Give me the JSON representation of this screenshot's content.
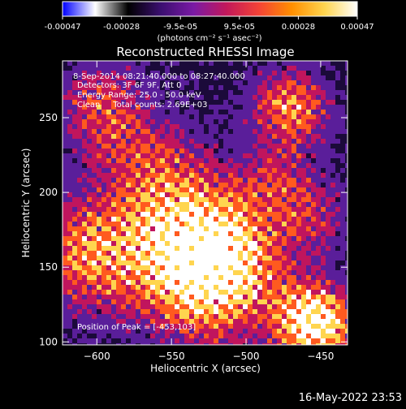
{
  "colorbar": {
    "tick_labels": [
      "-0.00047",
      "-0.00028",
      "-9.5e-05",
      "9.5e-05",
      "0.00028",
      "0.00047"
    ],
    "unit_label": "(photons cm⁻² s⁻¹ asec⁻²)",
    "colors": [
      "#0000ff",
      "#ffffff",
      "#000000",
      "#3b0f70",
      "#7a1aa5",
      "#c2185b",
      "#f44336",
      "#ff8f00",
      "#ffd54f",
      "#ffffff"
    ]
  },
  "image": {
    "title": "Reconstructed RHESSI Image",
    "annotation_lines": [
      "8-Sep-2014 08:21:40.000 to 08:27:40.000",
      "Detectors: 3F 6F 9F, Att 0",
      "Energy Range: 25.0 - 50.0 keV",
      "Clean     Total counts: 2.69E+03"
    ],
    "peak_label": "Position of Peak = [-453,103]",
    "colors": {
      "low": "#1b0a3a",
      "mid_low": "#5a1e9a",
      "mid": "#c0155d",
      "mid_high": "#ff5a1f",
      "high": "#ffd54f",
      "peak": "#ffffff"
    }
  },
  "axes": {
    "xlabel": "Heliocentric X (arcsec)",
    "ylabel": "Heliocentric Y (arcsec)",
    "x_ticks": [
      -600,
      -550,
      -500,
      -450
    ],
    "y_ticks": [
      100,
      150,
      200,
      250
    ],
    "xlim": [
      -623,
      -432
    ],
    "ylim": [
      98,
      288
    ]
  },
  "timestamp": "16-May-2022 23:53"
}
